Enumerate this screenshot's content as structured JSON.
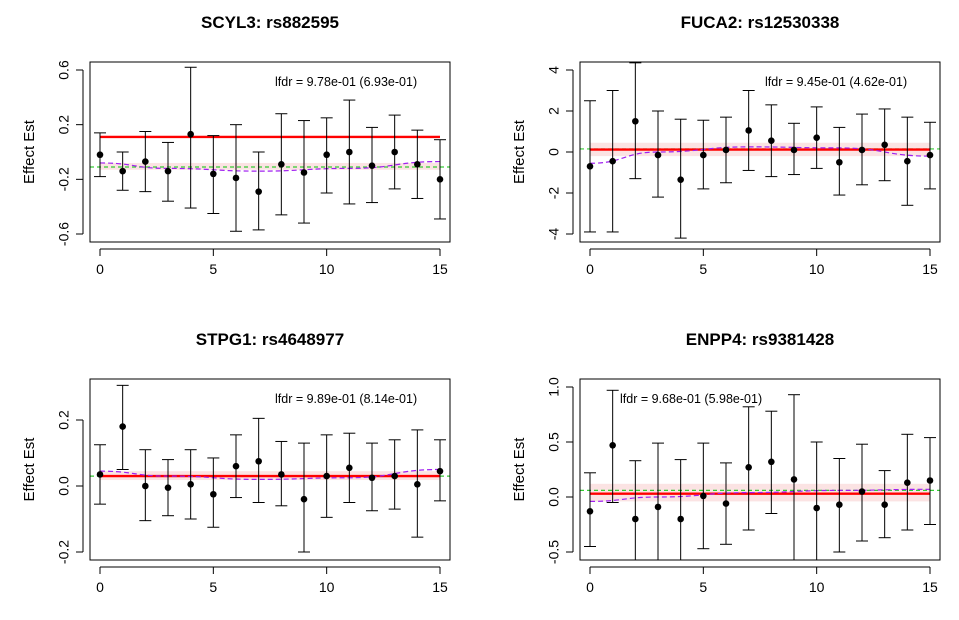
{
  "chart_data": [
    {
      "type": "scatter",
      "title": "SCYL3: rs882595",
      "xlabel": "",
      "ylabel": "Effect Est",
      "xlim": [
        0,
        15
      ],
      "ylim": [
        -0.6,
        0.6
      ],
      "xticks": [
        0,
        5,
        10,
        15
      ],
      "yticks": [
        -0.6,
        -0.2,
        0.2,
        0.6
      ],
      "xtick_labels": [
        "0",
        "5",
        "10",
        "15"
      ],
      "ytick_labels": [
        "-0.6",
        "-0.2",
        "0.2",
        "0.6"
      ],
      "annotation": "lfdr = 9.78e-01 (6.93e-01)",
      "x": [
        0,
        1,
        2,
        3,
        4,
        5,
        6,
        7,
        8,
        9,
        10,
        11,
        12,
        13,
        14,
        15
      ],
      "y": [
        -0.02,
        -0.14,
        -0.07,
        -0.14,
        0.13,
        -0.16,
        -0.19,
        -0.29,
        -0.09,
        -0.15,
        -0.02,
        0.0,
        -0.1,
        0.0,
        -0.09,
        -0.2
      ],
      "lower": [
        -0.18,
        -0.28,
        -0.29,
        -0.36,
        -0.41,
        -0.45,
        -0.58,
        -0.57,
        -0.46,
        -0.52,
        -0.3,
        -0.38,
        -0.37,
        -0.27,
        -0.34,
        -0.49
      ],
      "upper": [
        0.14,
        0.0,
        0.15,
        0.07,
        0.62,
        0.12,
        0.2,
        0.0,
        0.28,
        0.23,
        0.25,
        0.38,
        0.18,
        0.27,
        0.16,
        0.09
      ],
      "fit_line": 0.11,
      "band": [
        -0.13,
        -0.08
      ],
      "green_ref": -0.11,
      "smooth_x": [
        0,
        3,
        7,
        11,
        15
      ],
      "smooth_y": [
        -0.08,
        -0.12,
        -0.14,
        -0.12,
        -0.07
      ]
    },
    {
      "type": "scatter",
      "title": "FUCA2: rs12530338",
      "xlabel": "",
      "ylabel": "Effect Est",
      "xlim": [
        0,
        15
      ],
      "ylim": [
        -4,
        4
      ],
      "xticks": [
        0,
        5,
        10,
        15
      ],
      "yticks": [
        -4,
        -2,
        0,
        2,
        4
      ],
      "xtick_labels": [
        "0",
        "5",
        "10",
        "15"
      ],
      "ytick_labels": [
        "-4",
        "-2",
        "0",
        "2",
        "4"
      ],
      "annotation": "lfdr = 9.45e-01 (4.62e-01)",
      "x": [
        0,
        1,
        2,
        3,
        4,
        5,
        6,
        7,
        8,
        9,
        10,
        11,
        12,
        13,
        14,
        15
      ],
      "y": [
        -0.7,
        -0.45,
        1.5,
        -0.15,
        -1.35,
        -0.15,
        0.1,
        1.05,
        0.55,
        0.1,
        0.7,
        -0.5,
        0.1,
        0.35,
        -0.45,
        -0.15
      ],
      "lower": [
        -3.9,
        -3.9,
        -1.3,
        -2.2,
        -4.2,
        -1.8,
        -1.5,
        -0.9,
        -1.2,
        -1.1,
        -0.8,
        -2.1,
        -1.6,
        -1.4,
        -2.6,
        -1.8
      ],
      "upper": [
        2.5,
        3.0,
        4.35,
        2.0,
        1.6,
        1.55,
        1.7,
        3.0,
        2.3,
        1.4,
        2.2,
        1.2,
        1.85,
        2.1,
        1.7,
        1.45
      ],
      "fit_line": 0.12,
      "band": [
        -0.2,
        0.45
      ],
      "green_ref": 0.15,
      "smooth_x": [
        0,
        3,
        7,
        11,
        15
      ],
      "smooth_y": [
        -0.55,
        0.0,
        0.25,
        0.2,
        -0.2
      ]
    },
    {
      "type": "scatter",
      "title": "STPG1: rs4648977",
      "xlabel": "",
      "ylabel": "Effect Est",
      "xlim": [
        0,
        15
      ],
      "ylim": [
        -0.2,
        0.3
      ],
      "xticks": [
        0,
        5,
        10,
        15
      ],
      "yticks": [
        -0.2,
        0.0,
        0.2
      ],
      "xtick_labels": [
        "0",
        "5",
        "10",
        "15"
      ],
      "ytick_labels": [
        "-0.2",
        "0.0",
        "0.2"
      ],
      "annotation": "lfdr = 9.89e-01 (8.14e-01)",
      "x": [
        0,
        1,
        2,
        3,
        4,
        5,
        6,
        7,
        8,
        9,
        10,
        11,
        12,
        13,
        14,
        15
      ],
      "y": [
        0.035,
        0.18,
        0.0,
        -0.005,
        0.005,
        -0.025,
        0.06,
        0.075,
        0.035,
        -0.04,
        0.03,
        0.055,
        0.025,
        0.03,
        0.005,
        0.045
      ],
      "lower": [
        -0.055,
        0.05,
        -0.105,
        -0.09,
        -0.1,
        -0.125,
        -0.035,
        -0.05,
        -0.06,
        -0.2,
        -0.095,
        -0.05,
        -0.075,
        -0.07,
        -0.155,
        -0.045
      ],
      "upper": [
        0.125,
        0.305,
        0.11,
        0.08,
        0.11,
        0.085,
        0.155,
        0.205,
        0.135,
        0.13,
        0.155,
        0.16,
        0.13,
        0.14,
        0.17,
        0.14
      ],
      "fit_line": 0.03,
      "band": [
        0.018,
        0.045
      ],
      "green_ref": 0.03,
      "smooth_x": [
        0,
        3,
        7,
        11,
        15
      ],
      "smooth_y": [
        0.045,
        0.03,
        0.02,
        0.025,
        0.05
      ]
    },
    {
      "type": "scatter",
      "title": "ENPP4: rs9381428",
      "xlabel": "",
      "ylabel": "Effect Est",
      "xlim": [
        0,
        15
      ],
      "ylim": [
        -0.5,
        1.0
      ],
      "xticks": [
        0,
        5,
        10,
        15
      ],
      "yticks": [
        -0.5,
        0.0,
        0.5,
        1.0
      ],
      "xtick_labels": [
        "0",
        "5",
        "10",
        "15"
      ],
      "ytick_labels": [
        "-0.5",
        "0.0",
        "0.5",
        "1.0"
      ],
      "annotation": "lfdr = 9.68e-01 (5.98e-01)",
      "x": [
        0,
        1,
        2,
        3,
        4,
        5,
        6,
        7,
        8,
        9,
        10,
        11,
        12,
        13,
        14,
        15
      ],
      "y": [
        -0.13,
        0.47,
        -0.2,
        -0.09,
        -0.2,
        0.01,
        -0.06,
        0.27,
        0.32,
        0.16,
        -0.1,
        -0.07,
        0.05,
        -0.07,
        0.13,
        0.15
      ],
      "lower": [
        -0.45,
        -0.05,
        -0.73,
        -0.67,
        -0.75,
        -0.47,
        -0.43,
        -0.3,
        -0.15,
        -0.6,
        -0.7,
        -0.5,
        -0.4,
        -0.37,
        -0.3,
        -0.25
      ],
      "upper": [
        0.22,
        0.97,
        0.33,
        0.49,
        0.34,
        0.49,
        0.31,
        0.82,
        0.78,
        0.93,
        0.5,
        0.35,
        0.48,
        0.24,
        0.57,
        0.54
      ],
      "fit_line": 0.03,
      "band": [
        -0.04,
        0.12
      ],
      "green_ref": 0.06,
      "smooth_x": [
        0,
        3,
        7,
        11,
        15
      ],
      "smooth_y": [
        -0.04,
        0.0,
        0.04,
        0.06,
        0.07
      ]
    }
  ],
  "colors": {
    "points": "#000000",
    "fit_line": "#ff0000",
    "band": "#fbe3e3",
    "green_ref": "#33cc33",
    "smooth": "#a020f0",
    "axis": "#000000"
  }
}
